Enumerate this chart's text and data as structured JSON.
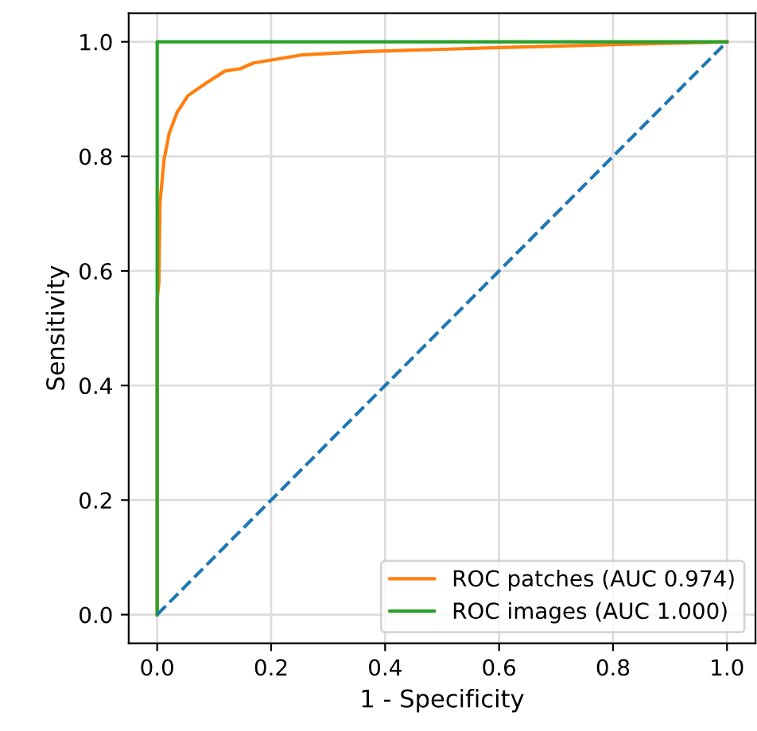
{
  "chart_data": {
    "type": "line",
    "xlabel": "1 - Specificity",
    "ylabel": "Sensitivity",
    "xlim": [
      -0.05,
      1.05
    ],
    "ylim": [
      -0.05,
      1.05
    ],
    "xticks": [
      {
        "value": 0,
        "label": "0.0"
      },
      0.2,
      0.4,
      0.6,
      0.8,
      {
        "value": 1,
        "label": "1.0"
      }
    ],
    "yticks": [
      {
        "value": 0,
        "label": "0.0"
      },
      0.2,
      0.4,
      0.6,
      0.8,
      {
        "value": 1,
        "label": "1.0"
      }
    ],
    "grid": true,
    "legend": "bottom right",
    "series": [
      {
        "name": "ROC patches (AUC 0.974)",
        "color": "#ff7f0e",
        "line_style": "solid",
        "x": [
          0,
          0,
          0.003,
          0.005,
          0.012,
          0.021,
          0.035,
          0.054,
          0.086,
          0.119,
          0.146,
          0.169,
          0.253,
          0.364,
          0.503,
          0.6,
          0.8,
          1.0
        ],
        "values": [
          0,
          0.55,
          0.58,
          0.72,
          0.794,
          0.84,
          0.877,
          0.906,
          0.928,
          0.949,
          0.953,
          0.963,
          0.977,
          0.983,
          0.987,
          0.99,
          0.995,
          1.0
        ]
      },
      {
        "name": "ROC images (AUC 1.000)",
        "color": "#2ca02c",
        "line_style": "solid",
        "x": [
          0,
          0,
          1
        ],
        "values": [
          0,
          1,
          1
        ]
      },
      {
        "color": "#1f77b4",
        "line_style": "dashed",
        "x": [
          0,
          1
        ],
        "values": [
          0,
          1
        ]
      }
    ]
  }
}
